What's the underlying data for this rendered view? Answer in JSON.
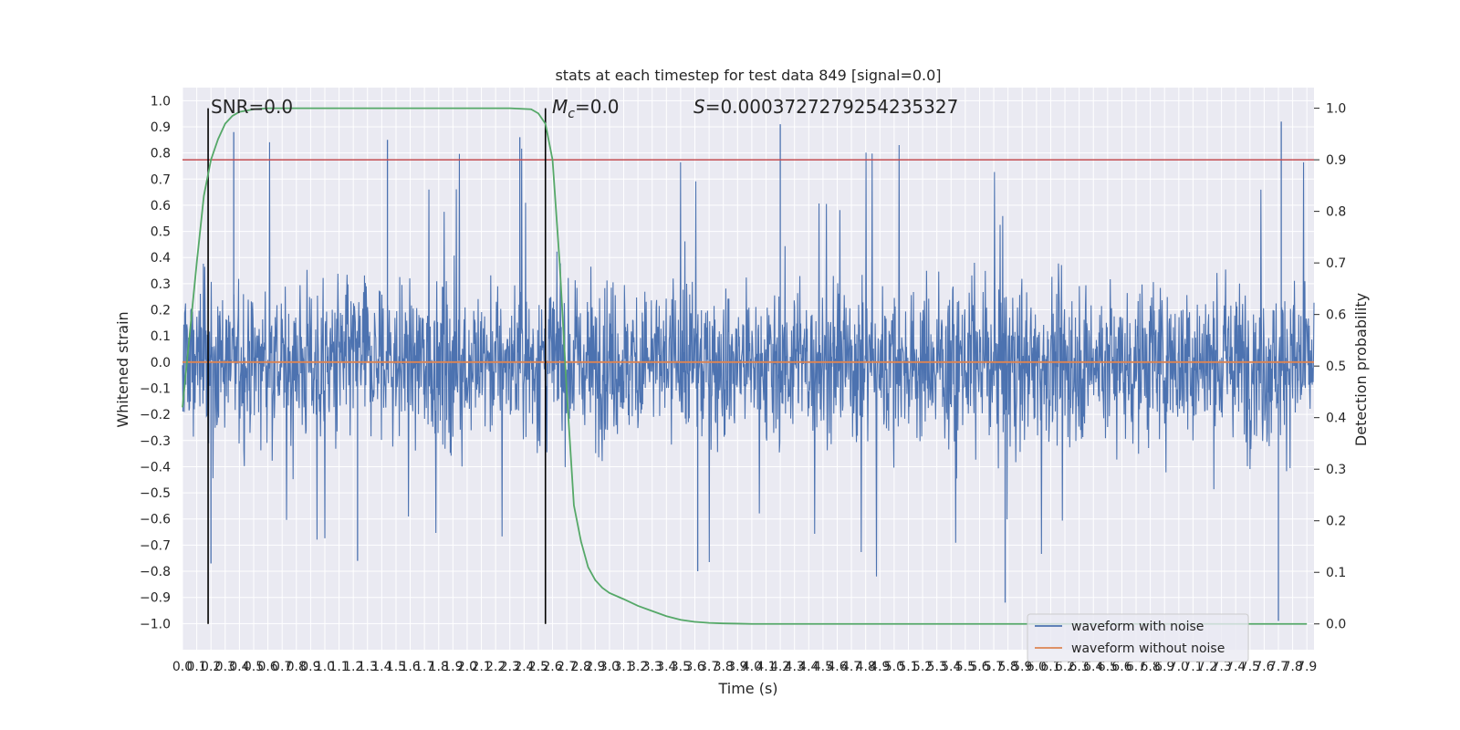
{
  "chart_data": {
    "type": "line",
    "title": "stats at each timestep for test data 849 [signal=0.0]",
    "xlabel": "Time (s)",
    "ylabel": "Whitened strain",
    "ylabel_right": "Detection probability",
    "xlim": [
      0.0,
      7.95
    ],
    "ylim": [
      -1.1,
      1.05
    ],
    "ylim_right": [
      -0.05,
      1.04
    ],
    "grid": true,
    "legend_position": "bottom-right",
    "annotations": {
      "snr": "SNR=0.0",
      "mc_symbol": "M",
      "mc_sub": "c",
      "mc_value": "=0.0",
      "s_symbol": "S",
      "s_value": "=0.0003727279254235327"
    },
    "vlines_x": [
      0.18,
      2.55
    ],
    "threshold_prob": 0.9,
    "x_ticks": [
      "0.0",
      "0.1",
      "0.2",
      "0.3",
      "0.4",
      "0.5",
      "0.6",
      "0.7",
      "0.8",
      "0.9",
      "1.0",
      "1.1",
      "1.2",
      "1.3",
      "1.4",
      "1.5",
      "1.6",
      "1.7",
      "1.8",
      "1.9",
      "2.0",
      "2.1",
      "2.2",
      "2.3",
      "2.4",
      "2.5",
      "2.6",
      "2.7",
      "2.8",
      "2.9",
      "3.0",
      "3.1",
      "3.2",
      "3.3",
      "3.4",
      "3.5",
      "3.6",
      "3.7",
      "3.8",
      "3.9",
      "4.0",
      "4.1",
      "4.2",
      "4.3",
      "4.4",
      "4.5",
      "4.6",
      "4.7",
      "4.8",
      "4.9",
      "5.0",
      "5.1",
      "5.2",
      "5.3",
      "5.4",
      "5.5",
      "5.6",
      "5.7",
      "5.8",
      "5.9",
      "6.0",
      "6.1",
      "6.2",
      "6.3",
      "6.4",
      "6.5",
      "6.6",
      "6.7",
      "6.8",
      "6.9",
      "7.0",
      "7.1",
      "7.2",
      "7.3",
      "7.4",
      "7.5",
      "7.6",
      "7.7",
      "7.8",
      "7.9"
    ],
    "y_ticks": [
      "1.0",
      "0.9",
      "0.8",
      "0.7",
      "0.6",
      "0.5",
      "0.4",
      "0.3",
      "0.2",
      "0.1",
      "0.0",
      "−0.1",
      "−0.2",
      "−0.3",
      "−0.4",
      "−0.5",
      "−0.6",
      "−0.7",
      "−0.8",
      "−0.9",
      "−1.0"
    ],
    "y_ticks_right": [
      "1.0",
      "0.9",
      "0.8",
      "0.7",
      "0.6",
      "0.5",
      "0.4",
      "0.3",
      "0.2",
      "0.1",
      "0.0"
    ],
    "series": [
      {
        "name": "waveform with noise",
        "color": "#4c72b0",
        "noise_envelope": {
          "typical_amplitude": 0.35,
          "peak_max": 0.92,
          "peak_min": -0.99
        }
      },
      {
        "name": "waveform without noise",
        "color": "#dd8452",
        "constant_value": 0.0
      },
      {
        "name": "detection probability",
        "color": "#55a868",
        "axis": "right",
        "x": [
          0.0,
          0.05,
          0.1,
          0.15,
          0.2,
          0.25,
          0.3,
          0.35,
          0.4,
          0.5,
          0.6,
          0.8,
          1.0,
          1.5,
          2.0,
          2.3,
          2.45,
          2.5,
          2.55,
          2.6,
          2.65,
          2.7,
          2.75,
          2.8,
          2.85,
          2.9,
          2.95,
          3.0,
          3.1,
          3.2,
          3.3,
          3.4,
          3.5,
          3.6,
          3.7,
          3.8,
          3.9,
          4.0,
          5.0,
          6.0,
          7.0,
          7.9
        ],
        "y": [
          0.42,
          0.56,
          0.7,
          0.83,
          0.9,
          0.94,
          0.97,
          0.985,
          0.993,
          0.998,
          1.0,
          1.0,
          1.0,
          1.0,
          1.0,
          1.0,
          0.998,
          0.99,
          0.97,
          0.9,
          0.7,
          0.45,
          0.23,
          0.16,
          0.11,
          0.085,
          0.07,
          0.06,
          0.048,
          0.035,
          0.025,
          0.015,
          0.008,
          0.004,
          0.002,
          0.001,
          0.0005,
          0.0,
          0.0,
          0.0,
          0.0,
          0.0
        ]
      }
    ]
  }
}
